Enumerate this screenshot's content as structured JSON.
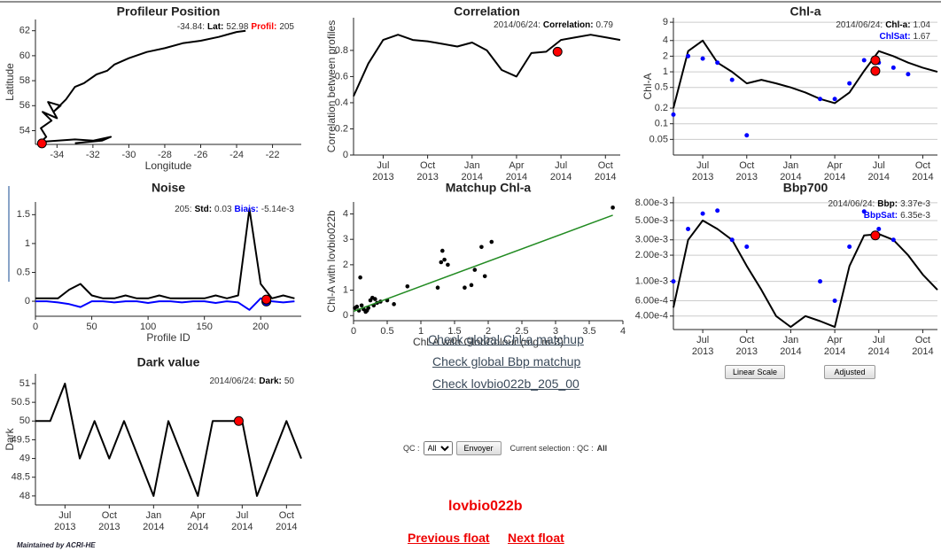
{
  "chart_data": [
    {
      "type": "line",
      "title": "Profileur Position",
      "xlabel": "Longitude",
      "ylabel": "Latitude",
      "x": [
        -35.0,
        -34.6,
        -34.9,
        -34.3,
        -34.8,
        -34.0,
        -34.5,
        -33.8,
        -34.2,
        -33.5,
        -33.0,
        -32.5,
        -31.8,
        -31.2,
        -30.8,
        -30.0,
        -29.0,
        -28.0,
        -27.0,
        -26.0,
        -25.0,
        -24.0,
        -23.5,
        null,
        -35.0,
        -33.0,
        -32.0,
        -31.0,
        -31.5,
        -33.0
      ],
      "series": [
        {
          "color": "#000000",
          "values": [
            52.98,
            53.5,
            54.2,
            54.8,
            55.5,
            55.0,
            56.3,
            56.0,
            55.5,
            56.5,
            57.5,
            57.8,
            58.5,
            58.8,
            59.3,
            59.8,
            60.3,
            60.6,
            61.0,
            61.2,
            61.5,
            61.9,
            62.0,
            null,
            53.1,
            53.3,
            53.2,
            53.5,
            53.2,
            53.0
          ]
        }
      ],
      "xlim": [
        -35.2,
        -20.4
      ],
      "xticks": [
        -34,
        -32,
        -30,
        -28,
        -26,
        -24,
        -22
      ],
      "ylim": [
        52.9,
        62.9
      ],
      "yticks": [
        54,
        56,
        58,
        60,
        62
      ],
      "highlight": [
        {
          "x": -34.84,
          "y": 52.98,
          "color": "#ff0000"
        }
      ],
      "annotation": [
        [
          {
            "text": "-34.84:",
            "bold": false,
            "color": "#333333"
          },
          {
            "text": "Lat:",
            "bold": true,
            "color": "#000000"
          },
          {
            "text": "52.98",
            "bold": false,
            "color": "#333333"
          },
          {
            "text": "Profil:",
            "bold": true,
            "color": "#ff0000"
          },
          {
            "text": "205",
            "bold": false,
            "color": "#333333"
          }
        ]
      ]
    },
    {
      "type": "line",
      "title": "Correlation",
      "ylabel": "Correlation between profiles",
      "x": [
        "2013-05",
        "2013-06",
        "2013-07",
        "2013-08",
        "2013-09",
        "2013-10",
        "2013-11",
        "2013-12",
        "2014-01",
        "2014-02",
        "2014-03",
        "2014-04",
        "2014-05",
        "2014-06",
        "2014-07",
        "2014-08",
        "2014-09",
        "2014-10",
        "2014-11"
      ],
      "series": [
        {
          "color": "#000000",
          "values": [
            0.45,
            0.7,
            0.88,
            0.92,
            0.88,
            0.87,
            0.85,
            0.83,
            0.86,
            0.8,
            0.65,
            0.6,
            0.78,
            0.79,
            0.88,
            0.9,
            0.92,
            0.9,
            0.88
          ]
        }
      ],
      "xlim": [
        "2013-05",
        "2014-11"
      ],
      "xticks": [
        {
          "value": "2013-07",
          "label": "Jul 2013"
        },
        {
          "value": "2013-10",
          "label": "Oct 2013"
        },
        {
          "value": "2014-01",
          "label": "Jan 2014"
        },
        {
          "value": "2014-04",
          "label": "Apr 2014"
        },
        {
          "value": "2014-07",
          "label": "Jul 2014"
        },
        {
          "value": "2014-10",
          "label": "Oct 2014"
        }
      ],
      "ylim": [
        0,
        1.05
      ],
      "yticks": [
        0,
        0.2,
        0.4,
        0.6,
        0.8
      ],
      "highlight": [
        {
          "x": "2014-06-24",
          "y": 0.79,
          "color": "#ff0000"
        }
      ],
      "annotation": [
        [
          {
            "text": "2014/06/24:",
            "bold": false,
            "color": "#333333"
          },
          {
            "text": "Correlation:",
            "bold": true,
            "color": "#000000"
          },
          {
            "text": "0.79",
            "bold": false,
            "color": "#333333"
          }
        ]
      ]
    },
    {
      "type": "line",
      "title": "Chl-a",
      "ylabel": "Chl-A",
      "ylog": true,
      "grid": true,
      "x": [
        "2013-05",
        "2013-06",
        "2013-07",
        "2013-08",
        "2013-09",
        "2013-10",
        "2013-11",
        "2013-12",
        "2014-01",
        "2014-02",
        "2014-03",
        "2014-04",
        "2014-05",
        "2014-06",
        "2014-07",
        "2014-08",
        "2014-09",
        "2014-10",
        "2014-11"
      ],
      "series": [
        {
          "color": "#000000",
          "values": [
            0.2,
            2.5,
            4,
            1.5,
            1,
            0.6,
            0.7,
            0.6,
            0.5,
            0.4,
            0.3,
            0.25,
            0.4,
            1.04,
            2.5,
            2,
            1.5,
            1.2,
            1
          ]
        },
        {
          "color": "#0000ff",
          "mode": "markers",
          "values": [
            0.15,
            2,
            1.8,
            1.5,
            0.7,
            0.06,
            null,
            null,
            null,
            null,
            0.3,
            0.3,
            0.6,
            1.67,
            1.5,
            1.2,
            0.9,
            null,
            null
          ]
        }
      ],
      "xlim": [
        "2013-05",
        "2014-11"
      ],
      "xticks": [
        {
          "value": "2013-07",
          "label": "Jul 2013"
        },
        {
          "value": "2013-10",
          "label": "Oct 2013"
        },
        {
          "value": "2014-01",
          "label": "Jan 2014"
        },
        {
          "value": "2014-04",
          "label": "Apr 2014"
        },
        {
          "value": "2014-07",
          "label": "Jul 2014"
        },
        {
          "value": "2014-10",
          "label": "Oct 2014"
        }
      ],
      "ylim": [
        0.025,
        11
      ],
      "yticks": [
        0.05,
        0.1,
        0.2,
        0.5,
        1,
        2,
        4,
        9
      ],
      "highlight": [
        {
          "x": "2014-06-24",
          "y": 1.67,
          "color": "#ff0000"
        },
        {
          "x": "2014-06-24",
          "y": 1.04,
          "color": "#ff0000"
        }
      ],
      "annotation": [
        [
          {
            "text": "2014/06/24:",
            "bold": false,
            "color": "#333333"
          },
          {
            "text": "Chl-a:",
            "bold": true,
            "color": "#000000"
          },
          {
            "text": "1.04",
            "bold": false,
            "color": "#333333"
          }
        ],
        [
          {
            "text": "ChlSat:",
            "bold": true,
            "color": "#0000ff"
          },
          {
            "text": "1.67",
            "bold": false,
            "color": "#333333"
          }
        ]
      ]
    },
    {
      "type": "line",
      "title": "Noise",
      "xlabel": "Profile ID",
      "x": [
        0,
        10,
        20,
        30,
        40,
        50,
        60,
        70,
        80,
        90,
        100,
        110,
        120,
        130,
        140,
        150,
        160,
        170,
        180,
        190,
        200,
        210,
        220,
        230
      ],
      "series": [
        {
          "color": "#000000",
          "values": [
            0.05,
            0.05,
            0.05,
            0.2,
            0.3,
            0.1,
            0.05,
            0.05,
            0.1,
            0.05,
            0.05,
            0.1,
            0.05,
            0.05,
            0.05,
            0.05,
            0.1,
            0.05,
            0.1,
            1.6,
            0.3,
            0.05,
            0.1,
            0.05
          ]
        },
        {
          "color": "#0000ff",
          "values": [
            0,
            0,
            -0.02,
            -0.05,
            -0.1,
            0,
            0,
            -0.02,
            0,
            0,
            -0.03,
            0,
            0,
            -0.02,
            0,
            0,
            -0.03,
            0,
            -0.02,
            -0.15,
            0.05,
            0,
            -0.02,
            0
          ]
        }
      ],
      "xlim": [
        0,
        236
      ],
      "xticks": [
        0,
        50,
        100,
        150,
        200
      ],
      "ylim": [
        -0.26,
        1.72
      ],
      "yticks": [
        0,
        0.5,
        1,
        1.5
      ],
      "highlight": [
        {
          "x": 205,
          "y": -0.00514,
          "color": "#0000ff"
        },
        {
          "x": 205,
          "y": 0.03,
          "color": "#ff0000"
        }
      ],
      "annotation": [
        [
          {
            "text": "205:",
            "bold": false,
            "color": "#333333"
          },
          {
            "text": "Std:",
            "bold": true,
            "color": "#000000"
          },
          {
            "text": "0.03",
            "bold": false,
            "color": "#333333"
          },
          {
            "text": "Biais:",
            "bold": true,
            "color": "#0000ff"
          },
          {
            "text": "-5.14e-3",
            "bold": false,
            "color": "#333333"
          }
        ]
      ]
    },
    {
      "type": "scatter",
      "title": "Matchup Chl-a",
      "xlabel": "Chl-A with GlobColour (mg.m-3)",
      "ylabel": "Chl-A with lovbio022b",
      "color": "#000000",
      "x": [
        0.02,
        0.05,
        0.08,
        0.1,
        0.12,
        0.15,
        0.18,
        0.2,
        0.22,
        0.25,
        0.28,
        0.3,
        0.32,
        0.35,
        0.4,
        0.5,
        0.8,
        1.25,
        1.3,
        1.32,
        1.35,
        1.4,
        1.65,
        1.75,
        1.8,
        1.9,
        1.95,
        2.05,
        3.85,
        0.6
      ],
      "y": [
        0.3,
        0.35,
        0.2,
        1.5,
        0.4,
        0.25,
        0.15,
        0.2,
        0.3,
        0.6,
        0.7,
        0.4,
        0.65,
        0.5,
        0.55,
        0.6,
        1.15,
        1.1,
        2.1,
        2.55,
        2.2,
        2.0,
        1.1,
        1.2,
        1.8,
        2.7,
        1.55,
        2.9,
        4.25,
        0.45
      ],
      "fit": {
        "x": [
          0,
          3.85
        ],
        "y": [
          0.17,
          3.95
        ],
        "color": "#228b22"
      },
      "xlim": [
        0,
        4
      ],
      "xticks": [
        0,
        0.5,
        1,
        1.5,
        2,
        2.5,
        3,
        3.5,
        4
      ],
      "ylim": [
        -0.2,
        4.47
      ],
      "yticks": [
        0,
        1,
        2,
        3,
        4
      ]
    },
    {
      "type": "line",
      "title": "Bbp700",
      "ylog": true,
      "grid": true,
      "x": [
        "2013-05",
        "2013-06",
        "2013-07",
        "2013-08",
        "2013-09",
        "2013-10",
        "2013-11",
        "2013-12",
        "2014-01",
        "2014-02",
        "2014-03",
        "2014-04",
        "2014-05",
        "2014-06",
        "2014-07",
        "2014-08",
        "2014-09",
        "2014-10",
        "2014-11"
      ],
      "series": [
        {
          "color": "#000000",
          "values": [
            0.0005,
            0.003,
            0.005,
            0.004,
            0.003,
            0.0015,
            0.0008,
            0.0004,
            0.0003,
            0.0004,
            0.00035,
            0.0003,
            0.0015,
            0.00337,
            0.0035,
            0.003,
            0.002,
            0.0012,
            0.0008
          ]
        },
        {
          "color": "#0000ff",
          "mode": "markers",
          "values": [
            0.001,
            0.004,
            0.006,
            0.0065,
            0.003,
            0.0025,
            null,
            null,
            null,
            null,
            0.001,
            0.0006,
            0.0025,
            0.00635,
            0.004,
            0.003,
            null,
            null,
            null
          ]
        }
      ],
      "xlim": [
        "2013-05",
        "2014-11"
      ],
      "xticks": [
        {
          "value": "2013-07",
          "label": "Jul 2013"
        },
        {
          "value": "2013-10",
          "label": "Oct 2013"
        },
        {
          "value": "2014-01",
          "label": "Jan 2014"
        },
        {
          "value": "2014-04",
          "label": "Apr 2014"
        },
        {
          "value": "2014-07",
          "label": "Jul 2014"
        },
        {
          "value": "2014-10",
          "label": "Oct 2014"
        }
      ],
      "ylim": [
        0.00028,
        0.0094
      ],
      "yticks": [
        {
          "value": 0.008,
          "label": "8.00e-3"
        },
        {
          "value": 0.005,
          "label": "5.00e-3"
        },
        {
          "value": 0.003,
          "label": "3.00e-3"
        },
        {
          "value": 0.002,
          "label": "2.00e-3"
        },
        {
          "value": 0.001,
          "label": "1.00e-3"
        },
        {
          "value": 0.0006,
          "label": "6.00e-4"
        },
        {
          "value": 0.0004,
          "label": "4.00e-4"
        }
      ],
      "highlight": [
        {
          "x": "2014-06-24",
          "y": 0.00337,
          "color": "#ff0000"
        }
      ],
      "annotation": [
        [
          {
            "text": "2014/06/24:",
            "bold": false,
            "color": "#333333"
          },
          {
            "text": "Bbp:",
            "bold": true,
            "color": "#000000"
          },
          {
            "text": "3.37e-3",
            "bold": false,
            "color": "#333333"
          }
        ],
        [
          {
            "text": "BbpSat:",
            "bold": true,
            "color": "#0000ff"
          },
          {
            "text": "6.35e-3",
            "bold": false,
            "color": "#333333"
          }
        ]
      ]
    },
    {
      "type": "line",
      "title": "Dark value",
      "ylabel": "Dark",
      "x": [
        "2013-05",
        "2013-06",
        "2013-07",
        "2013-08",
        "2013-09",
        "2013-10",
        "2013-11",
        "2013-12",
        "2014-01",
        "2014-02",
        "2014-03",
        "2014-04",
        "2014-05",
        "2014-06",
        "2014-07",
        "2014-08",
        "2014-09",
        "2014-10",
        "2014-11"
      ],
      "series": [
        {
          "color": "#000000",
          "values": [
            50,
            50,
            51,
            49,
            50,
            49,
            50,
            49,
            48,
            50,
            49,
            48,
            50,
            50,
            50,
            48,
            49,
            50,
            49
          ]
        }
      ],
      "xlim": [
        "2013-05",
        "2014-11"
      ],
      "xticks": [
        {
          "value": "2013-07",
          "label": "Jul 2013"
        },
        {
          "value": "2013-10",
          "label": "Oct 2013"
        },
        {
          "value": "2014-01",
          "label": "Jan 2014"
        },
        {
          "value": "2014-04",
          "label": "Apr 2014"
        },
        {
          "value": "2014-07",
          "label": "Jul 2014"
        },
        {
          "value": "2014-10",
          "label": "Oct 2014"
        }
      ],
      "ylim": [
        47.76,
        51.26
      ],
      "yticks": [
        48,
        48.5,
        49,
        49.5,
        50,
        50.5,
        51
      ],
      "highlight": [
        {
          "x": "2014-06-24",
          "y": 50,
          "color": "#ff0000"
        }
      ],
      "annotation": [
        [
          {
            "text": "2014/06/24:",
            "bold": false,
            "color": "#333333"
          },
          {
            "text": "Dark:",
            "bold": true,
            "color": "#000000"
          },
          {
            "text": "50",
            "bold": false,
            "color": "#333333"
          }
        ]
      ]
    }
  ],
  "page": {
    "links": [
      "Check global Chl-a matchup",
      "Check global Bbp matchup",
      "Check lovbio022b_205_00"
    ],
    "qc": {
      "label": "QC :",
      "option": "All",
      "button": "Envoyer",
      "selection_label": "Current selection : QC :",
      "selection": "All"
    },
    "scale_buttons": [
      "Linear Scale",
      "Adjusted"
    ],
    "float": "lovbio022b",
    "nav": [
      "Previous float",
      "Next float"
    ],
    "footer": "Maintained by ACRI-HE"
  }
}
